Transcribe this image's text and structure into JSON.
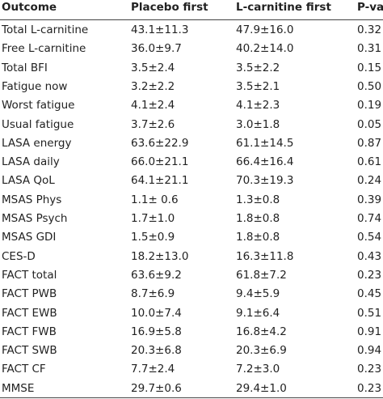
{
  "table": {
    "header": [
      "Outcome",
      "Placebo first",
      "L-carnitine first",
      "P-value*"
    ],
    "rows": [
      [
        "Total L-carnitine",
        "43.1±11.3",
        "47.9±16.0",
        "0.32"
      ],
      [
        "Free L-carnitine",
        "36.0±9.7",
        "40.2±14.0",
        "0.31"
      ],
      [
        "Total BFI",
        "3.5±2.4",
        "3.5±2.2",
        "0.15"
      ],
      [
        "Fatigue now",
        "3.2±2.2",
        "3.5±2.1",
        "0.50"
      ],
      [
        "Worst fatigue",
        "4.1±2.4",
        "4.1±2.3",
        "0.19"
      ],
      [
        "Usual fatigue",
        "3.7±2.6",
        "3.0±1.8",
        "0.05"
      ],
      [
        "LASA energy",
        "63.6±22.9",
        "61.1±14.5",
        "0.87"
      ],
      [
        "LASA daily",
        "66.0±21.1",
        "66.4±16.4",
        "0.61"
      ],
      [
        "LASA QoL",
        "64.1±21.1",
        "70.3±19.3",
        "0.24"
      ],
      [
        "MSAS Phys",
        "1.1± 0.6",
        "1.3±0.8",
        "0.39"
      ],
      [
        "MSAS Psych",
        "1.7±1.0",
        "1.8±0.8",
        "0.74"
      ],
      [
        "MSAS GDI",
        "1.5±0.9",
        "1.8±0.8",
        "0.54"
      ],
      [
        "CES-D",
        "18.2±13.0",
        "16.3±11.8",
        "0.43"
      ],
      [
        "FACT total",
        "63.6±9.2",
        "61.8±7.2",
        "0.23"
      ],
      [
        "FACT PWB",
        "8.7±6.9",
        "9.4±5.9",
        "0.45"
      ],
      [
        "FACT EWB",
        "10.0±7.4",
        "9.1±6.4",
        "0.51"
      ],
      [
        "FACT FWB",
        "16.9±5.8",
        "16.8±4.2",
        "0.91"
      ],
      [
        "FACT SWB",
        "20.3±6.8",
        "20.3±6.9",
        "0.94"
      ],
      [
        "FACT CF",
        "7.7±2.4",
        "7.2±3.0",
        "0.23"
      ],
      [
        "MMSE",
        "29.7±0.6",
        "29.4±1.0",
        "0.23"
      ]
    ]
  }
}
